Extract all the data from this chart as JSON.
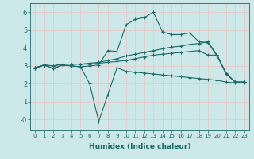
{
  "xlabel": "Humidex (Indice chaleur)",
  "bg_color": "#cde8e8",
  "line_color": "#1a6b6b",
  "grid_color": "#e8c8c8",
  "xlim": [
    -0.5,
    23.5
  ],
  "ylim": [
    -0.6,
    6.5
  ],
  "xticks": [
    0,
    1,
    2,
    3,
    4,
    5,
    6,
    7,
    8,
    9,
    10,
    11,
    12,
    13,
    14,
    15,
    16,
    17,
    18,
    19,
    20,
    21,
    22,
    23
  ],
  "yticks": [
    0,
    1,
    2,
    3,
    4,
    5,
    6
  ],
  "ytick_labels": [
    "-0",
    "1",
    "2",
    "3",
    "4",
    "5",
    "6"
  ],
  "series": [
    {
      "x": [
        0,
        1,
        2,
        3,
        4,
        5,
        6,
        7,
        8,
        9,
        10,
        11,
        12,
        13,
        14,
        15,
        16,
        17,
        18,
        19,
        20,
        21,
        22,
        23
      ],
      "y": [
        2.85,
        3.05,
        2.85,
        3.05,
        3.0,
        2.95,
        2.0,
        -0.1,
        1.4,
        2.9,
        2.7,
        2.65,
        2.6,
        2.55,
        2.5,
        2.45,
        2.4,
        2.35,
        2.3,
        2.25,
        2.2,
        2.1,
        2.05,
        2.05
      ]
    },
    {
      "x": [
        0,
        1,
        2,
        3,
        4,
        5,
        6,
        7,
        8,
        9,
        10,
        11,
        12,
        13,
        14,
        15,
        16,
        17,
        18,
        19,
        20,
        21,
        22,
        23
      ],
      "y": [
        2.9,
        3.05,
        3.0,
        3.1,
        3.1,
        3.1,
        3.1,
        3.15,
        3.2,
        3.25,
        3.3,
        3.4,
        3.5,
        3.6,
        3.65,
        3.7,
        3.75,
        3.8,
        3.85,
        3.6,
        3.6,
        2.55,
        2.1,
        2.1
      ]
    },
    {
      "x": [
        0,
        1,
        2,
        3,
        4,
        5,
        6,
        7,
        8,
        9,
        10,
        11,
        12,
        13,
        14,
        15,
        16,
        17,
        18,
        19,
        20,
        21,
        22,
        23
      ],
      "y": [
        2.9,
        3.05,
        3.0,
        3.1,
        3.1,
        3.1,
        3.15,
        3.2,
        3.3,
        3.4,
        3.55,
        3.65,
        3.75,
        3.85,
        3.95,
        4.05,
        4.1,
        4.2,
        4.25,
        4.35,
        3.6,
        2.6,
        2.1,
        2.1
      ]
    },
    {
      "x": [
        0,
        1,
        2,
        3,
        4,
        5,
        6,
        7,
        8,
        9,
        10,
        11,
        12,
        13,
        14,
        15,
        16,
        17,
        18,
        19,
        20,
        21,
        22,
        23
      ],
      "y": [
        2.85,
        3.05,
        2.85,
        3.05,
        3.0,
        2.95,
        3.0,
        3.05,
        3.85,
        3.8,
        5.3,
        5.6,
        5.7,
        6.0,
        4.9,
        4.75,
        4.75,
        4.85,
        4.35,
        4.3,
        3.55,
        2.55,
        2.1,
        2.1
      ]
    }
  ]
}
